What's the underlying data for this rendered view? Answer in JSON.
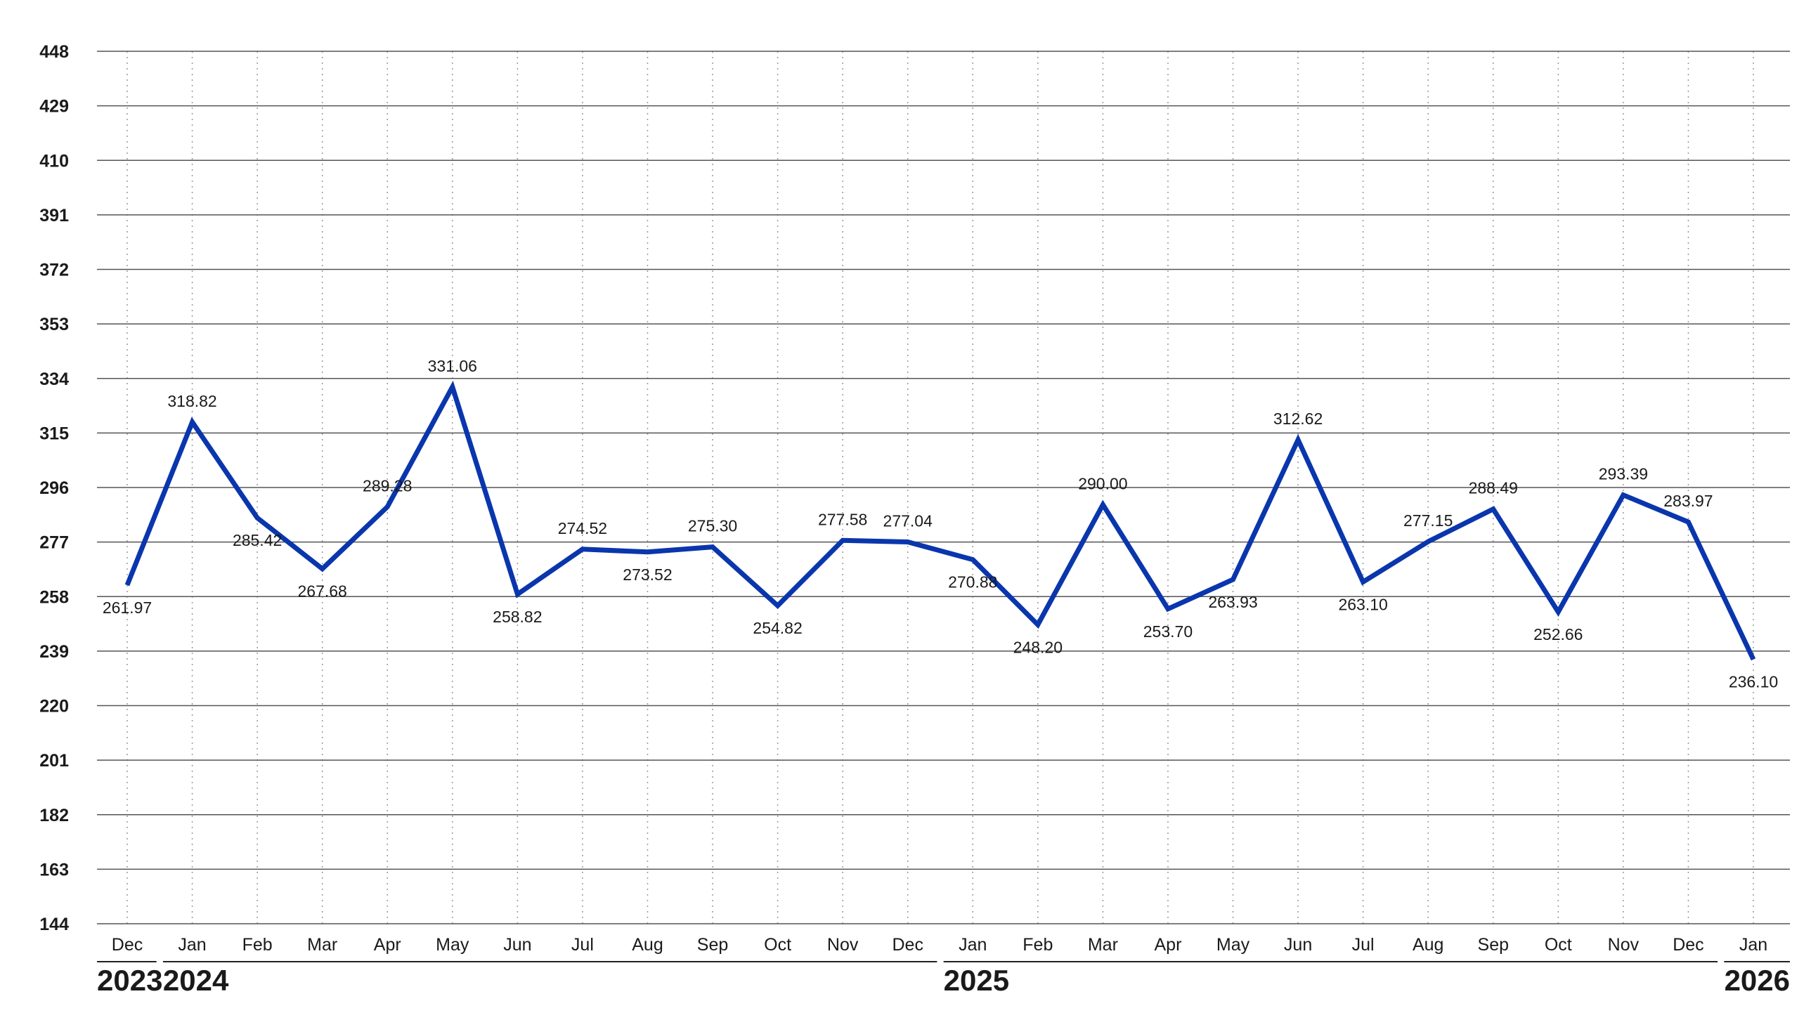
{
  "colors": {
    "line": "#0a36ad",
    "grid": "#555555",
    "vgrid": "#999999",
    "text": "#1a1a1a"
  },
  "chart_data": {
    "type": "line",
    "title": "",
    "xlabel": "",
    "ylabel": "",
    "ylim": [
      144,
      448
    ],
    "yticks": [
      "144",
      "163",
      "182",
      "201",
      "220",
      "239",
      "258",
      "277",
      "296",
      "315",
      "334",
      "353",
      "372",
      "391",
      "410",
      "429",
      "448"
    ],
    "grid": {
      "horizontal": true,
      "vertical": "dotted"
    },
    "categories": [
      "Dec",
      "Jan",
      "Feb",
      "Mar",
      "Apr",
      "May",
      "Jun",
      "Jul",
      "Aug",
      "Sep",
      "Oct",
      "Nov",
      "Dec",
      "Jan",
      "Feb",
      "Mar",
      "Apr",
      "May",
      "Jun",
      "Jul",
      "Aug",
      "Sep",
      "Oct",
      "Nov",
      "Dec",
      "Jan"
    ],
    "years": [
      {
        "label": "2023",
        "start": 0,
        "end": 0
      },
      {
        "label": "2024",
        "start": 1,
        "end": 12
      },
      {
        "label": "2025",
        "start": 13,
        "end": 24
      },
      {
        "label": "2026",
        "start": 25,
        "end": 25
      }
    ],
    "series": [
      {
        "values": [
          261.97,
          318.82,
          285.42,
          267.68,
          289.28,
          331.06,
          258.82,
          274.52,
          273.52,
          275.3,
          254.82,
          277.58,
          277.04,
          270.88,
          248.2,
          290.0,
          253.7,
          263.93,
          312.62,
          263.1,
          277.15,
          288.49,
          252.66,
          293.39,
          283.97,
          236.1
        ],
        "labels": [
          "261.97",
          "318.82",
          "285.42",
          "267.68",
          "289.28",
          "331.06",
          "258.82",
          "274.52",
          "273.52",
          "275.30",
          "254.82",
          "277.58",
          "277.04",
          "270.88",
          "248.20",
          "290.00",
          "253.70",
          "263.93",
          "312.62",
          "263.10",
          "277.15",
          "288.49",
          "252.66",
          "293.39",
          "283.97",
          "236.10"
        ],
        "label_positions": [
          "below",
          "above",
          "below",
          "below",
          "above",
          "above",
          "below",
          "above",
          "below",
          "above",
          "below",
          "above",
          "above",
          "below",
          "below",
          "above",
          "below",
          "below",
          "above",
          "below",
          "above",
          "above",
          "below",
          "above",
          "above",
          "below"
        ]
      }
    ]
  }
}
